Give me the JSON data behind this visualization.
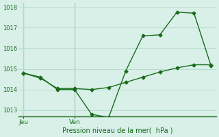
{
  "line1_x": [
    0,
    1,
    2,
    3,
    4,
    5,
    6,
    7,
    8,
    9,
    10,
    11
  ],
  "line1_y": [
    1014.8,
    1014.6,
    1014.0,
    1014.0,
    1012.8,
    1012.65,
    1014.9,
    1016.6,
    1016.65,
    1017.75,
    1017.7,
    1015.15
  ],
  "line2_x": [
    0,
    1,
    2,
    3,
    4,
    5,
    6,
    7,
    8,
    9,
    10,
    11
  ],
  "line2_y": [
    1014.8,
    1014.55,
    1014.05,
    1014.05,
    1014.0,
    1014.1,
    1014.35,
    1014.6,
    1014.85,
    1015.05,
    1015.2,
    1015.2
  ],
  "line_color": "#1a6b1a",
  "bg_color": "#d8f0e8",
  "grid_color": "#b8ddd0",
  "xlabel": "Pression niveau de la mer(  hPa )",
  "xlabel_color": "#1a6b1a",
  "tick_color": "#1a6b1a",
  "xtick_labels_pos": [
    0,
    3
  ],
  "xtick_labels_text": [
    "Jeu",
    "Ven"
  ],
  "xtick_vline_positions": [
    0,
    3
  ],
  "ylim": [
    1012.7,
    1018.2
  ],
  "yticks": [
    1013,
    1014,
    1015,
    1016,
    1017,
    1018
  ],
  "marker": "D",
  "marker_size": 2.5,
  "line_width": 1.0
}
